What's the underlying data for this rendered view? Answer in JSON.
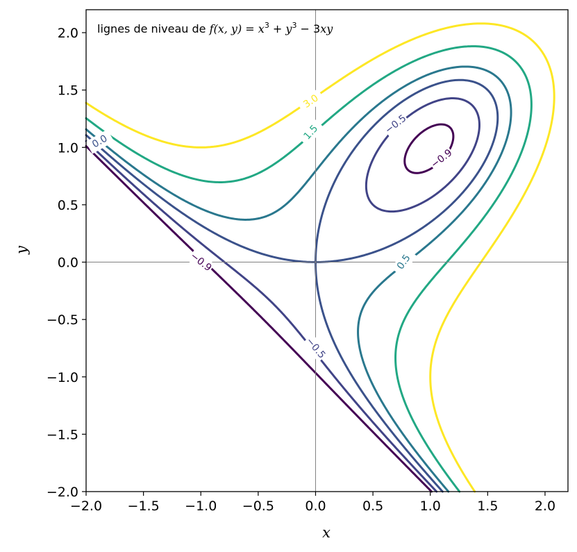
{
  "chart_data": {
    "type": "contour",
    "title": "lignes de niveau de f(x, y) = x³ + y³ − 3xy",
    "title_parts": {
      "prefix": "lignes de niveau de ",
      "f": "f",
      "args": "(x, y) = ",
      "x": "x",
      "sup1": "3",
      "plus": " + ",
      "y": "y",
      "sup2": "3",
      "minus": " − 3",
      "xy": "xy"
    },
    "function": "x^3 + y^3 - 3xy",
    "xlabel": "x",
    "ylabel": "y",
    "xlim": [
      -2.0,
      2.2
    ],
    "ylim": [
      -2.0,
      2.2
    ],
    "xticks": [
      "−2.0",
      "−1.5",
      "−1.0",
      "−0.5",
      "0.0",
      "0.5",
      "1.0",
      "1.5",
      "2.0"
    ],
    "yticks": [
      "−2.0",
      "−1.5",
      "−1.0",
      "−0.5",
      "0.0",
      "0.5",
      "1.0",
      "1.5",
      "2.0"
    ],
    "levels": [
      -0.9,
      -0.5,
      0.0,
      0.5,
      1.5,
      3.0
    ],
    "level_colors": [
      "#440154",
      "#414487",
      "#3b528b",
      "#2a788e",
      "#22a884",
      "#fde725"
    ],
    "contour_labels": [
      {
        "text": "−0.9",
        "level": -0.9,
        "x": -1.0,
        "y": 0.0,
        "color": "#440154",
        "rotate": 38
      },
      {
        "text": "−0.9",
        "level": -0.9,
        "x": 1.1,
        "y": 0.9,
        "color": "#440154",
        "rotate": -38
      },
      {
        "text": "−0.5",
        "level": -0.5,
        "x": 0.0,
        "y": -0.75,
        "color": "#414487",
        "rotate": 50
      },
      {
        "text": "−0.5",
        "level": -0.5,
        "x": 0.7,
        "y": 1.2,
        "color": "#414487",
        "rotate": -38
      },
      {
        "text": "0.5",
        "level": 0.5,
        "x": 0.77,
        "y": 0.0,
        "color": "#2a788e",
        "rotate": -55
      },
      {
        "text": "1.5",
        "level": 1.5,
        "x": -0.04,
        "y": 1.13,
        "color": "#22a884",
        "rotate": -48
      },
      {
        "text": "3.0",
        "level": 3.0,
        "x": -0.04,
        "y": 1.4,
        "color": "#fde725",
        "rotate": -34
      },
      {
        "text": "0.0",
        "level": 0.0,
        "x": -1.88,
        "y": 1.05,
        "color": "#3b528b",
        "rotate": -30
      }
    ],
    "reference_lines": {
      "x": 0,
      "y": 0,
      "color": "#808080"
    },
    "grid": false
  }
}
